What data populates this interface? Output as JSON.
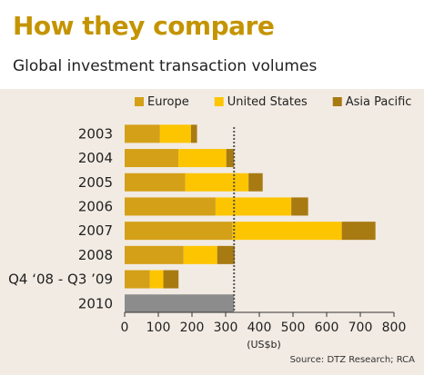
{
  "header": {
    "title": "How they compare",
    "subtitle": "Global investment transaction volumes"
  },
  "source": "Source: DTZ Research; RCA",
  "colors": {
    "europe": "#d4a017",
    "united_states": "#fdc500",
    "asia_pacific": "#a87a12",
    "total_2010": "#8c8c8c",
    "reference_line": "#555555",
    "background": "#f2ebe3",
    "header_background": "#ffffff",
    "title": "#c49400"
  },
  "chart_data": {
    "type": "bar",
    "orientation": "horizontal",
    "stacked": true,
    "title": "How they compare",
    "subtitle": "Global investment transaction volumes",
    "xlabel": "(US$b)",
    "ylabel": "",
    "xlim": [
      0,
      800
    ],
    "x_ticks": [
      "0",
      "100",
      "200",
      "300",
      "400",
      "500",
      "600",
      "700",
      "800"
    ],
    "legend_position": "top",
    "grid": false,
    "categories": [
      "2003",
      "2004",
      "2005",
      "2006",
      "2007",
      "2008",
      "Q4 ‘08 - Q3 ’09",
      "2010"
    ],
    "series": [
      {
        "name": "Europe",
        "color": "#d4a017",
        "values": [
          105,
          160,
          180,
          270,
          320,
          175,
          75,
          null
        ]
      },
      {
        "name": "United States",
        "color": "#fdc500",
        "values": [
          92,
          142,
          188,
          225,
          325,
          100,
          40,
          null
        ]
      },
      {
        "name": "Asia Pacific",
        "color": "#a87a12",
        "values": [
          18,
          23,
          42,
          50,
          100,
          52,
          45,
          null
        ]
      }
    ],
    "total_bar": {
      "category": "2010",
      "value": 325,
      "color": "#8c8c8c"
    },
    "reference_line": {
      "value": 325,
      "style": "dotted"
    }
  }
}
